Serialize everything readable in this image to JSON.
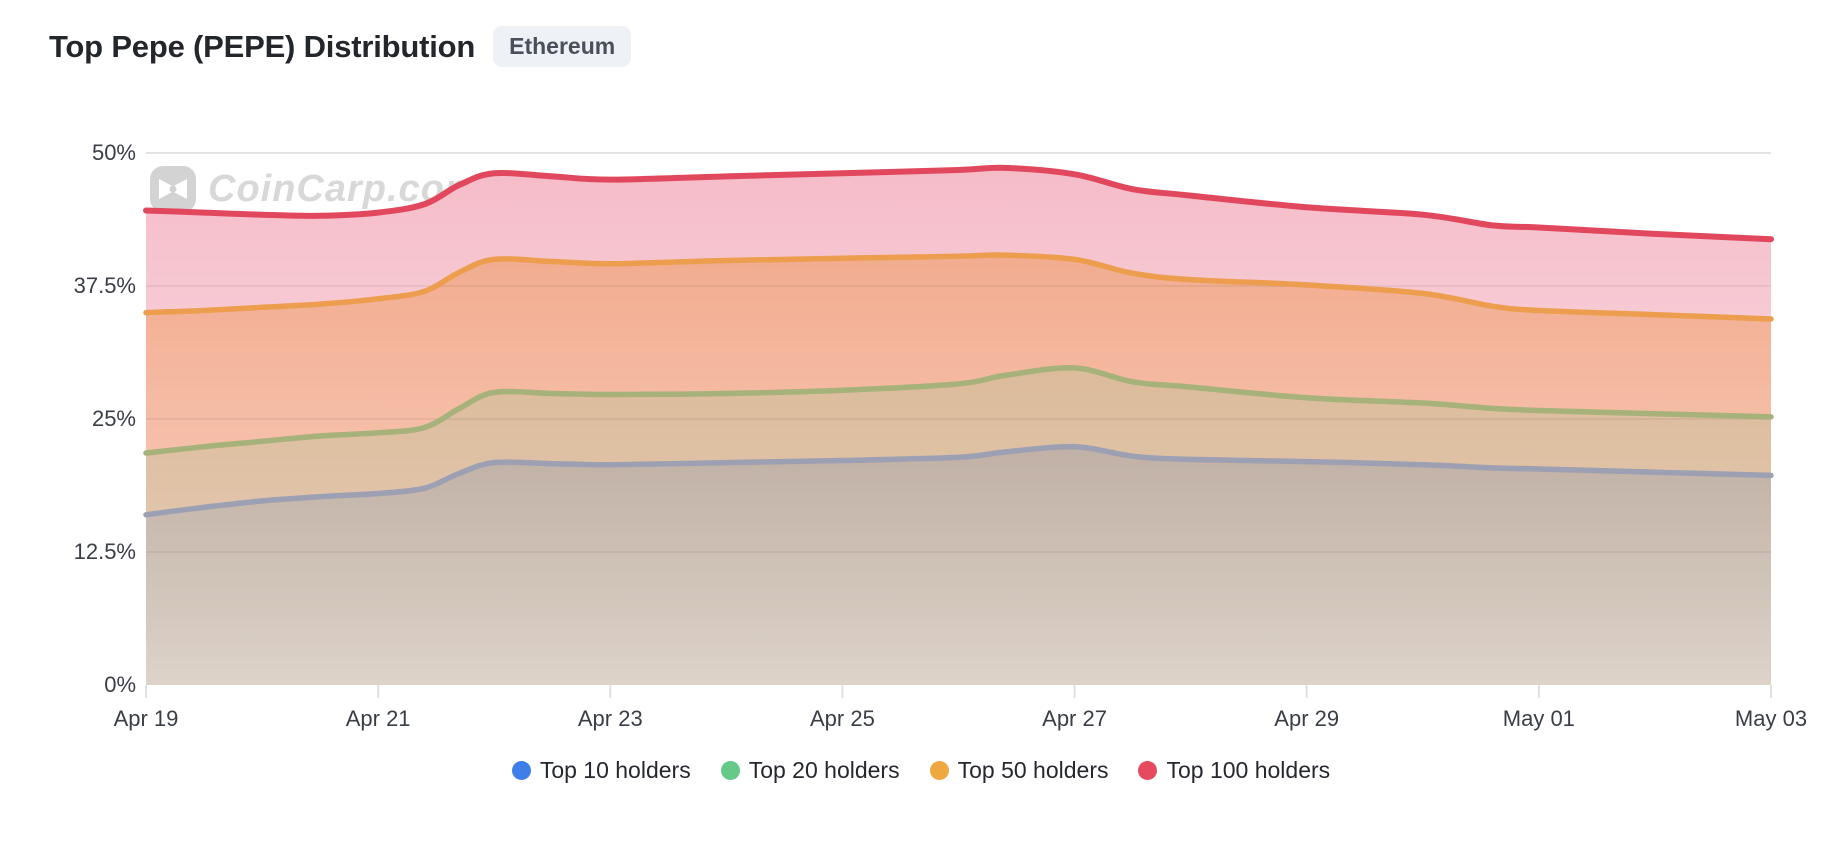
{
  "header": {
    "title": "Top Pepe (PEPE) Distribution",
    "badge": "Ethereum"
  },
  "watermark": {
    "text": "CoinCarp.com"
  },
  "chart_data": {
    "type": "area",
    "title": "Top Pepe (PEPE) Distribution",
    "network": "Ethereum",
    "xlabel": "",
    "ylabel": "",
    "ylim": [
      0,
      50
    ],
    "x_days_range": [
      0,
      14
    ],
    "grid": "horizontal",
    "legend_position": "bottom",
    "y_ticks": [
      {
        "value": 0,
        "label": "0%"
      },
      {
        "value": 12.5,
        "label": "12.5%"
      },
      {
        "value": 25,
        "label": "25%"
      },
      {
        "value": 37.5,
        "label": "37.5%"
      },
      {
        "value": 50,
        "label": "50%"
      }
    ],
    "x_ticks": [
      {
        "day": 0,
        "label": "Apr 19"
      },
      {
        "day": 2,
        "label": "Apr 21"
      },
      {
        "day": 4,
        "label": "Apr 23"
      },
      {
        "day": 6,
        "label": "Apr 25"
      },
      {
        "day": 8,
        "label": "Apr 27"
      },
      {
        "day": 10,
        "label": "Apr 29"
      },
      {
        "day": 12,
        "label": "May 01"
      },
      {
        "day": 14,
        "label": "May 03"
      }
    ],
    "x": [
      0,
      0.5,
      1,
      1.5,
      2,
      2.4,
      2.7,
      3,
      3.5,
      4,
      5,
      6,
      7,
      7.4,
      8,
      8.5,
      9,
      10,
      11,
      11.6,
      12,
      13,
      14
    ],
    "series": [
      {
        "name": "Top 10 holders",
        "legend_color": "#3D7EE9",
        "line_color": "#9CA0B2",
        "values": [
          16.0,
          16.7,
          17.3,
          17.7,
          18.0,
          18.5,
          19.9,
          20.9,
          20.8,
          20.7,
          20.9,
          21.1,
          21.4,
          21.9,
          22.4,
          21.5,
          21.2,
          21.0,
          20.7,
          20.4,
          20.3,
          20.0,
          19.7
        ]
      },
      {
        "name": "Top 20 holders",
        "legend_color": "#65C987",
        "line_color": "#A6B27A",
        "values": [
          21.8,
          22.4,
          22.9,
          23.4,
          23.7,
          24.2,
          26.0,
          27.5,
          27.4,
          27.3,
          27.4,
          27.7,
          28.3,
          29.1,
          29.8,
          28.5,
          28.0,
          27.0,
          26.5,
          26.0,
          25.8,
          25.5,
          25.2
        ]
      },
      {
        "name": "Top 50 holders",
        "legend_color": "#EFA73F",
        "line_color": "#EC9E4E",
        "values": [
          35.0,
          35.2,
          35.5,
          35.8,
          36.3,
          37.0,
          38.8,
          40.0,
          39.8,
          39.6,
          39.9,
          40.1,
          40.3,
          40.4,
          40.0,
          38.7,
          38.1,
          37.6,
          36.8,
          35.6,
          35.2,
          34.8,
          34.4
        ]
      },
      {
        "name": "Top 100 holders",
        "legend_color": "#E64A5F",
        "line_color": "#E2485D",
        "values": [
          44.6,
          44.4,
          44.2,
          44.1,
          44.4,
          45.2,
          47.0,
          48.1,
          47.8,
          47.5,
          47.8,
          48.1,
          48.4,
          48.6,
          48.0,
          46.6,
          46.0,
          44.9,
          44.2,
          43.2,
          43.0,
          42.4,
          41.9
        ]
      }
    ],
    "bands": [
      {
        "top": "Top 100 holders",
        "bottom": "Top 50 holders",
        "gradient": [
          "#F5BCC8",
          "#F7CAD4"
        ]
      },
      {
        "top": "Top 50 holders",
        "bottom": "Top 20 holders",
        "gradient": [
          "#F2AC8F",
          "#F6C0AA"
        ]
      },
      {
        "top": "Top 20 holders",
        "bottom": "Top 10 holders",
        "gradient": [
          "#DBBB9A",
          "#E1C4AA"
        ]
      },
      {
        "top": "Top 10 holders",
        "bottom": null,
        "gradient": [
          "#C0B0A5",
          "#DDD3C9"
        ]
      }
    ],
    "colors": {
      "grid_top": "#E3E3E3",
      "grid_faint": "rgba(60,50,45,0.07)",
      "tick": "#E0E0E0"
    }
  },
  "legend": {
    "items": [
      "Top 10 holders",
      "Top 20 holders",
      "Top 50 holders",
      "Top 100 holders"
    ]
  }
}
